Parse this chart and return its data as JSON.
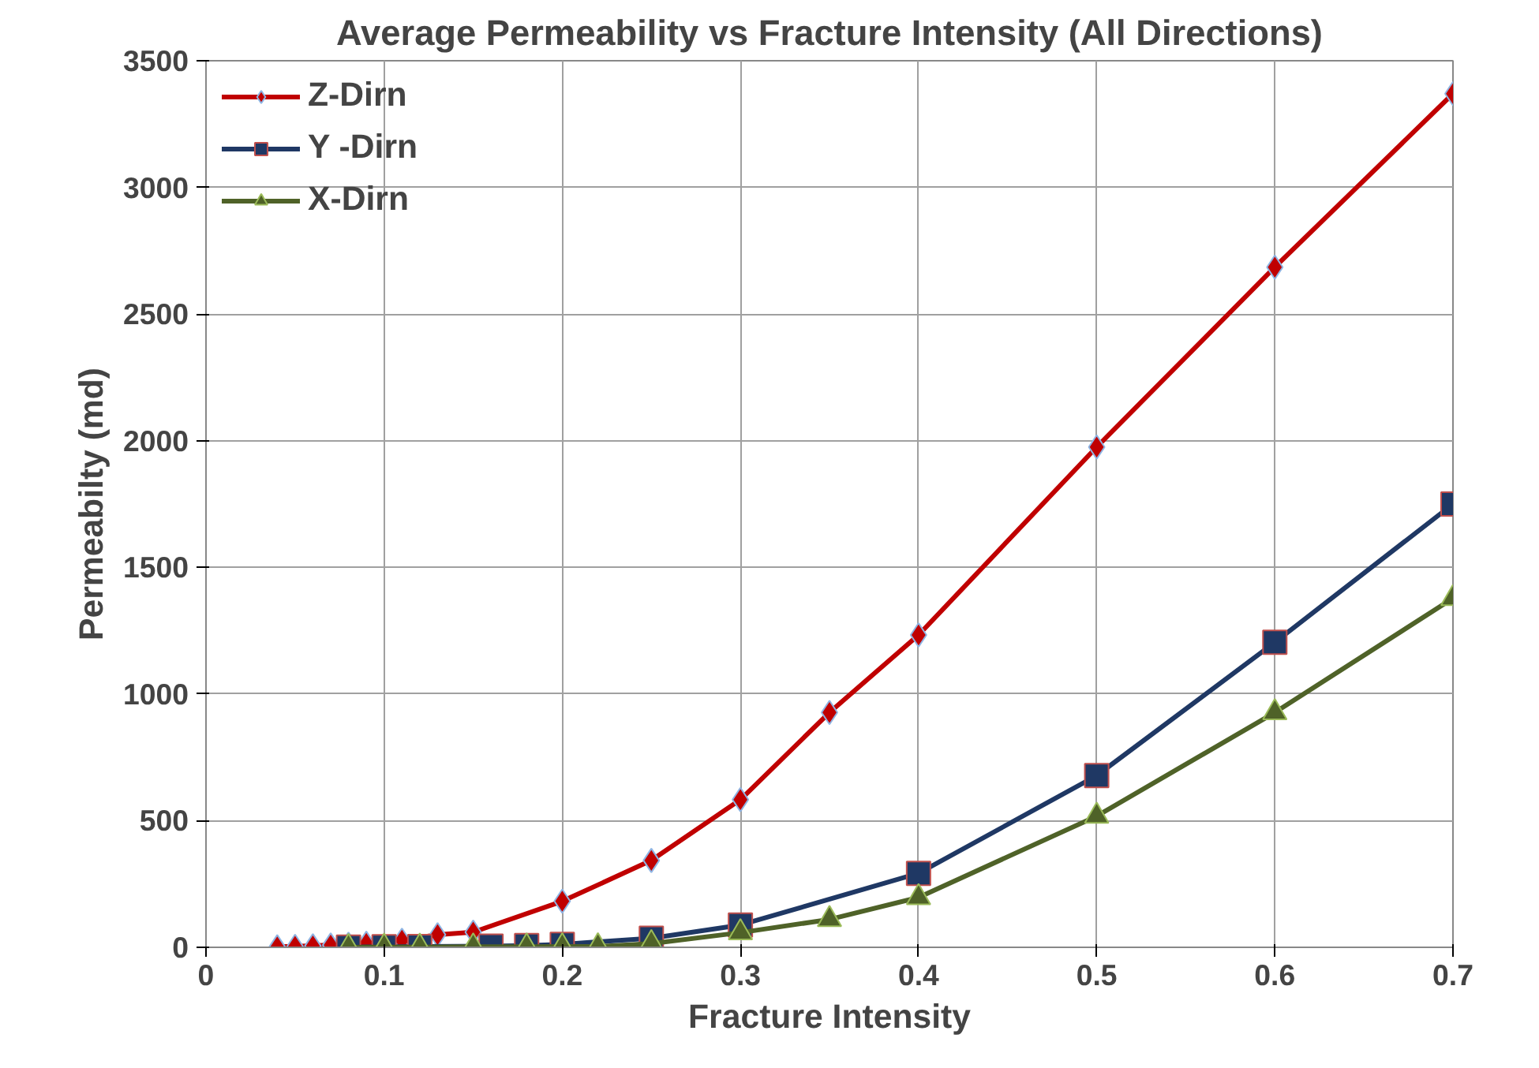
{
  "chart_data": {
    "type": "line",
    "title": "Average Permeability vs Fracture Intensity (All Directions)",
    "xlabel": "Fracture Intensity",
    "ylabel": "Permeabilty (md)",
    "xlim": [
      0,
      0.7
    ],
    "xticks": [
      0,
      0.1,
      0.2,
      0.3,
      0.4,
      0.5,
      0.6,
      0.7
    ],
    "ylim": [
      0,
      3500
    ],
    "yticks": [
      0,
      500,
      1000,
      1500,
      2000,
      2500,
      3000,
      3500
    ],
    "grid": true,
    "legend": "top left",
    "line_style": "solid",
    "series": [
      {
        "name": "Z-Dirn",
        "color": "#c00000",
        "marker": "diamond",
        "x": [
          0.04,
          0.05,
          0.06,
          0.07,
          0.08,
          0.09,
          0.1,
          0.11,
          0.12,
          0.13,
          0.15,
          0.2,
          0.25,
          0.3,
          0.35,
          0.4,
          0.5,
          0.6,
          0.7
        ],
        "values": [
          2,
          4,
          6,
          9,
          12,
          16,
          null,
          28,
          null,
          50,
          60,
          182,
          343,
          583,
          927,
          1233,
          1975,
          2685,
          3370
        ]
      },
      {
        "name": "Y -Dirn",
        "color": "#1f3864",
        "marker": "square",
        "x": [
          0.08,
          0.1,
          0.12,
          0.16,
          0.18,
          0.2,
          0.25,
          0.3,
          0.4,
          0.5,
          0.6,
          0.7
        ],
        "values": [
          1,
          2,
          3,
          5,
          7,
          12,
          36,
          88,
          292,
          678,
          1204,
          1750
        ]
      },
      {
        "name": "X-Dirn",
        "color": "#4f6228",
        "marker": "triangle",
        "x": [
          0.08,
          0.1,
          0.12,
          0.15,
          0.18,
          0.2,
          0.22,
          0.25,
          0.3,
          0.35,
          0.4,
          0.5,
          0.6,
          0.7
        ],
        "values": [
          0,
          1,
          1,
          2,
          2,
          3,
          3,
          15,
          58,
          110,
          197,
          518,
          927,
          1378
        ]
      }
    ]
  }
}
